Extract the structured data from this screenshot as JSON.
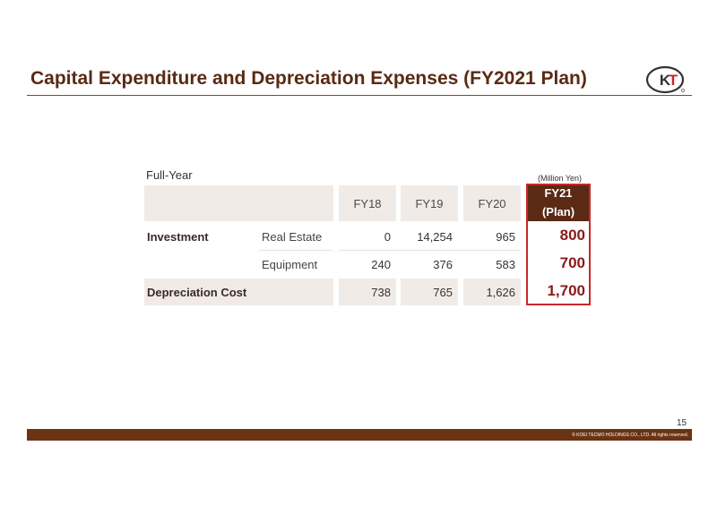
{
  "title": "Capital Expenditure and Depreciation Expenses (FY2021 Plan)",
  "logo_text": "KT",
  "table": {
    "period_label": "Full-Year",
    "unit_label": "(Million Yen)",
    "headers": [
      "FY18",
      "FY19",
      "FY20"
    ],
    "plan_header": {
      "line1": "FY21",
      "line2": "(Plan)"
    },
    "rows": [
      {
        "group": "Investment",
        "sub": "Real Estate",
        "values": [
          "0",
          "14,254",
          "965"
        ],
        "plan": "800"
      },
      {
        "group": "",
        "sub": "Equipment",
        "values": [
          "240",
          "376",
          "583"
        ],
        "plan": "700"
      },
      {
        "group": "Depreciation Cost",
        "sub": "",
        "values": [
          "738",
          "765",
          "1,626"
        ],
        "plan": "1,700"
      }
    ]
  },
  "page_number": "15",
  "copyright": "© KOEI TECMO HOLDINGS CO., LTD. All rights reserved.",
  "colors": {
    "brand_brown": "#5a2a14",
    "highlight_red": "#c8282a",
    "cell_shade": "#f1ebe7"
  }
}
